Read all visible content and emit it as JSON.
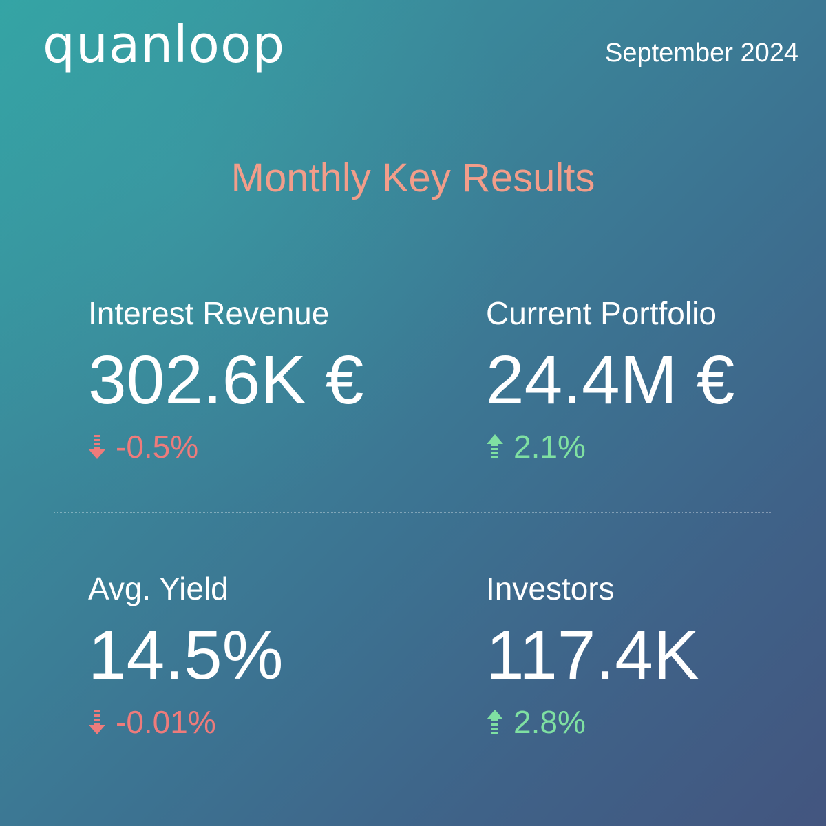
{
  "brand": {
    "logo_text": "quanloop"
  },
  "header": {
    "date": "September 2024"
  },
  "title": "Monthly Key Results",
  "colors": {
    "title": "#f29d8a",
    "negative": "#ee7b7b",
    "positive": "#7fe0a2",
    "background_start": "#34a3a4",
    "background_end": "#43557f"
  },
  "metrics": [
    {
      "label": "Interest Revenue",
      "value": "302.6K €",
      "change": "-0.5%",
      "direction": "down",
      "icon": "arrow-down-icon"
    },
    {
      "label": "Current Portfolio",
      "value": "24.4M €",
      "change": "2.1%",
      "direction": "up",
      "icon": "arrow-up-icon"
    },
    {
      "label": "Avg. Yield",
      "value": "14.5%",
      "change": "-0.01%",
      "direction": "down",
      "icon": "arrow-down-icon"
    },
    {
      "label": "Investors",
      "value": "117.4K",
      "change": "2.8%",
      "direction": "up",
      "icon": "arrow-up-icon"
    }
  ]
}
